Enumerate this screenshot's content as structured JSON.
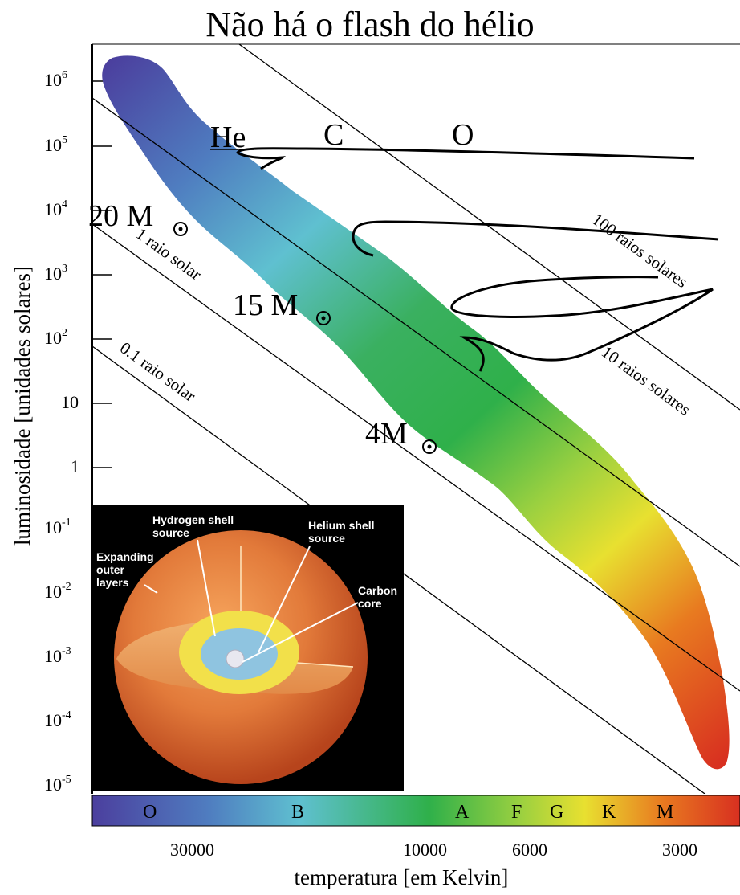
{
  "page": {
    "title": "Não há o flash do hélio"
  },
  "chart_data": {
    "type": "scatter",
    "title": "Não há o flash do hélio",
    "xlabel": "temperatura [em Kelvin]",
    "ylabel": "luminosidade [unidades solares]",
    "x_tick_labels": [
      "30000",
      "10000",
      "6000",
      "3000"
    ],
    "y_tick_labels": [
      {
        "base": "10",
        "exp": "6"
      },
      {
        "base": "10",
        "exp": "5"
      },
      {
        "base": "10",
        "exp": "4"
      },
      {
        "base": "10",
        "exp": "3"
      },
      {
        "base": "10",
        "exp": "2"
      },
      {
        "base": "10",
        "exp": ""
      },
      {
        "base": "1",
        "exp": ""
      },
      {
        "base": "10",
        "exp": "-1"
      },
      {
        "base": "10",
        "exp": "-2"
      },
      {
        "base": "10",
        "exp": "-3"
      },
      {
        "base": "10",
        "exp": "-4"
      },
      {
        "base": "10",
        "exp": "-5"
      }
    ],
    "spectral_classes": [
      "O",
      "B",
      "A",
      "F",
      "G",
      "K",
      "M"
    ],
    "radius_lines": [
      "0.1 raio solar",
      "1 raio solar",
      "10 raios solares",
      "100 raios solares"
    ],
    "mass_labels": [
      "20 M",
      "15 M",
      "4M"
    ],
    "element_labels": [
      "He",
      "C",
      "O"
    ],
    "main_sequence_colors": [
      "#4b3f9e",
      "#4f7dc0",
      "#5fc0d0",
      "#3ab060",
      "#2fb04a",
      "#9ad040",
      "#e8e030",
      "#e87a20",
      "#d83020"
    ],
    "tracks": [
      {
        "name": "20 Msun track",
        "points": [
          [
            280,
            190
          ],
          [
            800,
            197
          ]
        ]
      },
      {
        "name": "15 Msun track",
        "points": [
          [
            440,
            285
          ],
          [
            895,
            298
          ]
        ]
      },
      {
        "name": "4 Msun track",
        "points": [
          [
            560,
            385
          ],
          [
            820,
            345
          ]
        ]
      }
    ]
  },
  "inset": {
    "labels": {
      "hydrogen": [
        "Hydrogen shell",
        "source"
      ],
      "helium": [
        "Helium shell",
        "source"
      ],
      "expanding": [
        "Expanding",
        "outer",
        "layers"
      ],
      "carbon": [
        "Carbon",
        "core"
      ]
    }
  }
}
